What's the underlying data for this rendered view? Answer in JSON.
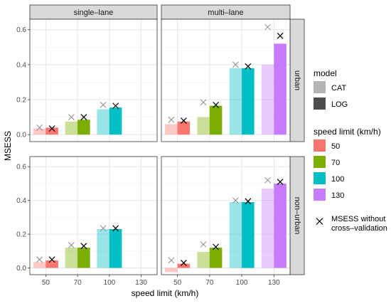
{
  "chart_data": {
    "type": "bar",
    "xlabel": "speed limit (km/h)",
    "ylabel": "MSESS",
    "categories": [
      "50",
      "70",
      "100",
      "130"
    ],
    "ylim": [
      -0.04,
      0.66
    ],
    "yticks": [
      0.0,
      0.2,
      0.4,
      0.6
    ],
    "ytick_labels": [
      "0.0",
      "0.2",
      "0.4",
      "0.6"
    ],
    "grid": true,
    "columns": [
      "single–lane",
      "multi–lane"
    ],
    "rows": [
      "urban",
      "non–urban"
    ],
    "colors": {
      "50": "#F8766D",
      "70": "#7CAE00",
      "100": "#00BFC4",
      "130": "#C77CFF"
    },
    "panels": [
      {
        "column": "single–lane",
        "row": "urban",
        "cat": {
          "50": 0.035,
          "70": 0.075,
          "100": 0.145
        },
        "log": {
          "50": 0.04,
          "70": 0.085,
          "100": 0.155
        },
        "cat_cv": {
          "50": 0.04,
          "70": 0.1,
          "100": 0.17
        },
        "log_cv": {
          "50": 0.035,
          "70": 0.1,
          "100": 0.165
        }
      },
      {
        "column": "multi–lane",
        "row": "urban",
        "cat": {
          "50": 0.06,
          "70": 0.1,
          "100": 0.38,
          "130": 0.4
        },
        "log": {
          "50": 0.075,
          "70": 0.165,
          "100": 0.38,
          "130": 0.52
        },
        "cat_cv": {
          "50": 0.085,
          "70": 0.185,
          "100": 0.4,
          "130": 0.615
        },
        "log_cv": {
          "50": 0.08,
          "70": 0.17,
          "100": 0.39,
          "130": 0.565
        }
      },
      {
        "column": "single–lane",
        "row": "non–urban",
        "cat": {
          "50": 0.035,
          "70": 0.12,
          "100": 0.23
        },
        "log": {
          "50": 0.045,
          "70": 0.12,
          "100": 0.23
        },
        "cat_cv": {
          "50": 0.05,
          "70": 0.135,
          "100": 0.235
        },
        "log_cv": {
          "50": 0.05,
          "70": 0.13,
          "100": 0.235
        }
      },
      {
        "column": "multi–lane",
        "row": "non–urban",
        "cat": {
          "50": -0.025,
          "70": 0.095,
          "100": 0.39,
          "130": 0.47
        },
        "log": {
          "50": 0.025,
          "70": 0.12,
          "100": 0.39,
          "130": 0.5
        },
        "cat_cv": {
          "50": 0.045,
          "70": 0.14,
          "100": 0.4,
          "130": 0.52
        },
        "log_cv": {
          "50": 0.03,
          "70": 0.125,
          "100": 0.395,
          "130": 0.51
        }
      }
    ],
    "legend": {
      "placement": "right",
      "model_title": "model",
      "model_items": [
        "CAT",
        "LOG"
      ],
      "speed_title": "speed limit (km/h)",
      "speed_items": [
        "50",
        "70",
        "100",
        "130"
      ],
      "cv_label_line1": "MSESS without",
      "cv_label_line2": "cross–validation"
    }
  }
}
